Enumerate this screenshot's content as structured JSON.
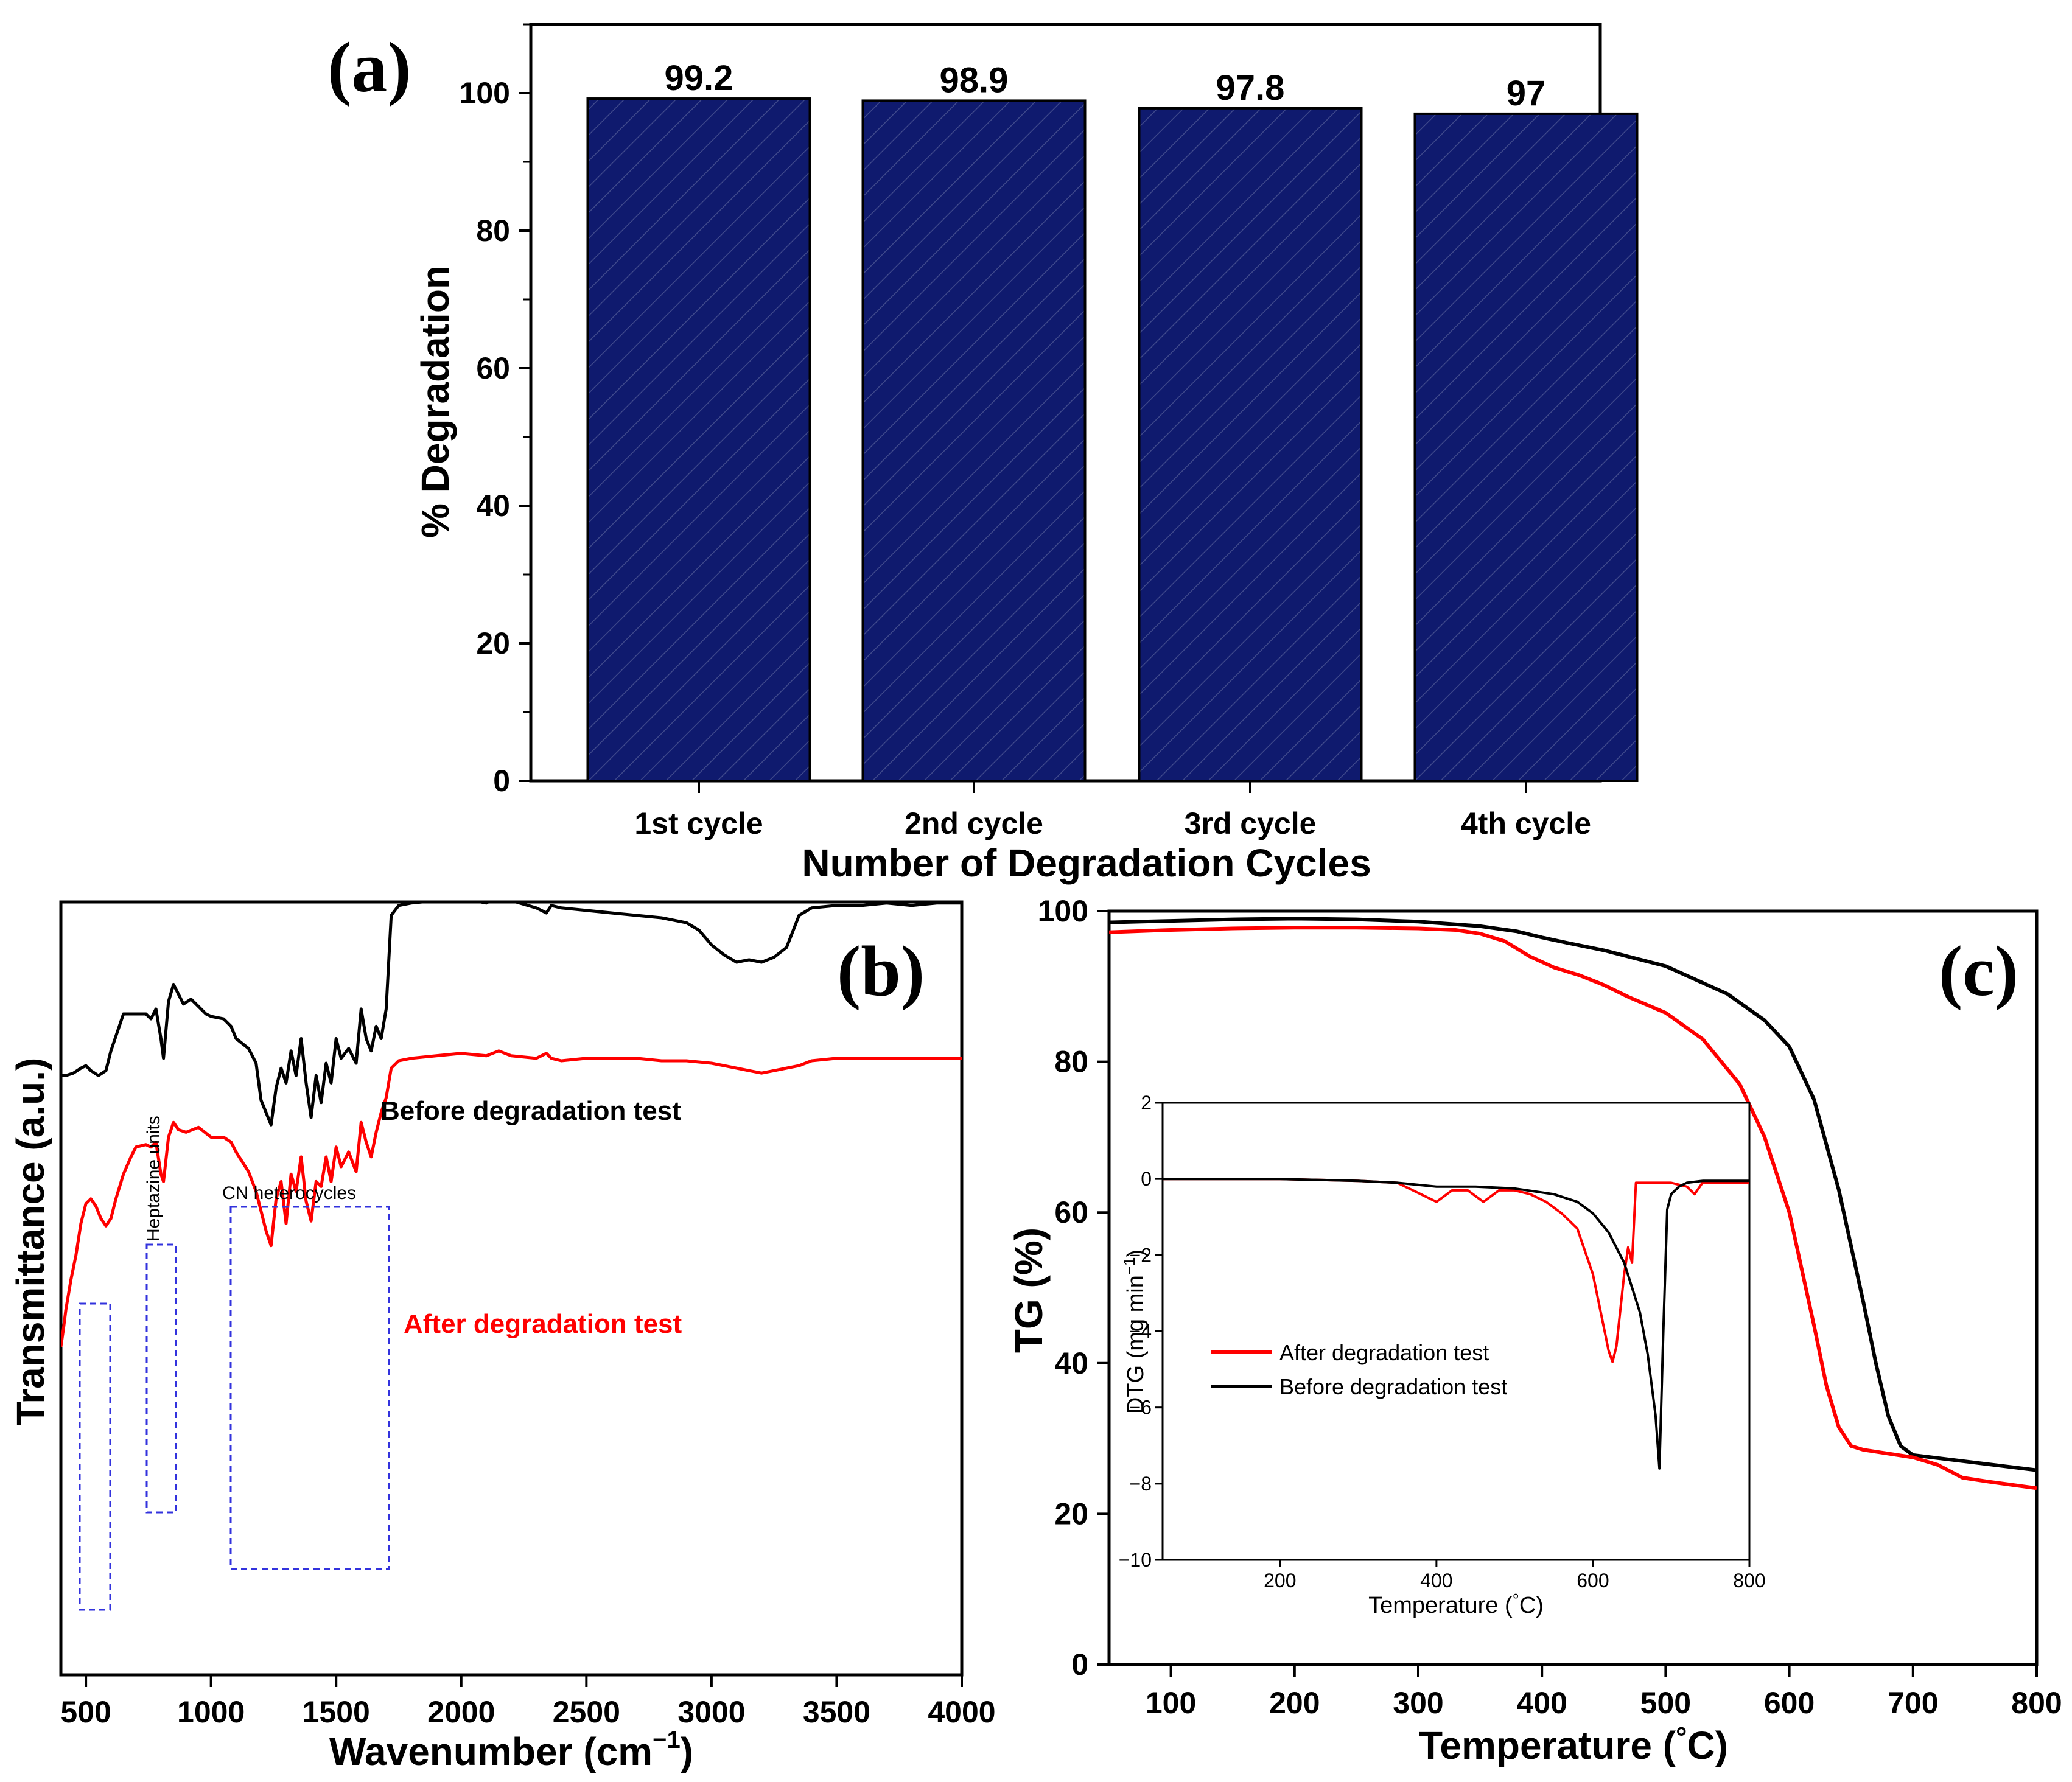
{
  "panels": {
    "a": {
      "label": "(a)"
    },
    "b": {
      "label": "(b)"
    },
    "c": {
      "label": "(c)"
    }
  },
  "chart_data": [
    {
      "id": "a",
      "type": "bar",
      "categories": [
        "1st cycle",
        "2nd cycle",
        "3rd cycle",
        "4th cycle"
      ],
      "values": [
        99.2,
        98.9,
        97.8,
        97
      ],
      "value_labels": [
        "99.2",
        "98.9",
        "97.8",
        "97"
      ],
      "xlabel": "Number of Degradation Cycles",
      "ylabel": "% Degradation",
      "ylim": [
        0,
        110
      ],
      "yticks": [
        0,
        20,
        40,
        60,
        80,
        100
      ],
      "ytick_labels": [
        "0",
        "20",
        "40",
        "60",
        "80",
        "100"
      ],
      "bar_color": "#0f1a6e",
      "hatch": "diagonal"
    },
    {
      "id": "b",
      "type": "line",
      "xlabel": "Wavenumber (cm",
      "xlabel_sup": "−1",
      "xlabel_end": ")",
      "ylabel": "Transmittance (a.u.)",
      "xlim": [
        400,
        4000
      ],
      "xticks": [
        500,
        1000,
        1500,
        2000,
        2500,
        3000,
        3500,
        4000
      ],
      "xtick_labels": [
        "500",
        "1000",
        "1500",
        "2000",
        "2500",
        "3000",
        "3500",
        "4000"
      ],
      "series": [
        {
          "name": "Before degradation test",
          "color": "#000000",
          "x": [
            400,
            420,
            450,
            480,
            500,
            520,
            550,
            580,
            600,
            650,
            700,
            740,
            760,
            780,
            800,
            810,
            830,
            850,
            870,
            890,
            920,
            950,
            980,
            1000,
            1050,
            1080,
            1100,
            1150,
            1180,
            1200,
            1220,
            1240,
            1260,
            1280,
            1300,
            1320,
            1340,
            1360,
            1380,
            1400,
            1420,
            1440,
            1460,
            1480,
            1500,
            1520,
            1550,
            1580,
            1600,
            1620,
            1640,
            1660,
            1680,
            1700,
            1720,
            1750,
            1800,
            1900,
            2000,
            2100,
            2150,
            2200,
            2300,
            2340,
            2360,
            2400,
            2500,
            2600,
            2700,
            2800,
            2900,
            2950,
            3000,
            3050,
            3100,
            3150,
            3200,
            3250,
            3300,
            3350,
            3400,
            3500,
            3600,
            3700,
            3800,
            3900,
            4000
          ],
          "y": [
            55,
            55,
            56,
            58,
            59,
            57,
            55,
            57,
            65,
            80,
            80,
            80,
            78,
            82,
            70,
            62,
            85,
            92,
            88,
            84,
            86,
            83,
            80,
            79,
            78,
            75,
            70,
            66,
            60,
            45,
            40,
            35,
            50,
            58,
            52,
            65,
            55,
            70,
            52,
            38,
            55,
            44,
            60,
            52,
            70,
            62,
            66,
            60,
            82,
            70,
            65,
            75,
            70,
            82,
            120,
            124,
            125,
            126,
            127,
            125,
            128,
            126,
            123,
            121,
            124,
            123,
            122,
            121,
            120,
            119,
            117,
            114,
            108,
            104,
            101,
            102,
            101,
            103,
            107,
            120,
            123,
            124,
            124,
            125,
            124,
            125,
            125
          ]
        },
        {
          "name": "After degradation test",
          "color": "#ff0000",
          "x": [
            400,
            410,
            420,
            440,
            460,
            480,
            500,
            520,
            540,
            560,
            580,
            600,
            620,
            650,
            680,
            700,
            740,
            760,
            780,
            800,
            810,
            830,
            850,
            870,
            900,
            950,
            1000,
            1050,
            1080,
            1100,
            1150,
            1180,
            1200,
            1220,
            1240,
            1260,
            1280,
            1300,
            1320,
            1340,
            1360,
            1380,
            1400,
            1420,
            1440,
            1460,
            1480,
            1500,
            1520,
            1550,
            1580,
            1600,
            1620,
            1640,
            1660,
            1680,
            1700,
            1720,
            1750,
            1800,
            1900,
            2000,
            2100,
            2150,
            2200,
            2300,
            2340,
            2360,
            2400,
            2500,
            2600,
            2700,
            2800,
            2900,
            3000,
            3050,
            3100,
            3150,
            3200,
            3250,
            3300,
            3350,
            3400,
            3500,
            3600,
            3700,
            3800,
            3900,
            4000
          ],
          "y": [
            -55,
            -48,
            -40,
            -28,
            -18,
            -5,
            3,
            5,
            2,
            -3,
            -6,
            -3,
            5,
            15,
            22,
            26,
            27,
            26,
            28,
            15,
            12,
            30,
            36,
            33,
            32,
            34,
            30,
            30,
            28,
            24,
            16,
            8,
            0,
            -8,
            -14,
            5,
            12,
            -5,
            15,
            8,
            22,
            4,
            -4,
            12,
            10,
            22,
            12,
            26,
            18,
            24,
            16,
            36,
            28,
            22,
            32,
            40,
            46,
            58,
            61,
            62,
            63,
            64,
            63,
            65,
            63,
            62,
            64,
            62,
            61,
            62,
            62,
            62,
            61,
            61,
            60,
            59,
            58,
            57,
            56,
            57,
            58,
            59,
            61,
            62,
            62,
            62,
            62,
            62,
            62
          ]
        }
      ],
      "annotations": [
        "Heptazine units",
        "CN heterocycles",
        "Before degradation test",
        "After degradation test"
      ]
    },
    {
      "id": "c",
      "type": "line",
      "xlabel": "Temperature (",
      "xlabel_deg": "°",
      "xlabel_end": "C)",
      "ylabel": "TG (%)",
      "xlim": [
        50,
        800
      ],
      "ylim": [
        0,
        100
      ],
      "xticks": [
        100,
        200,
        300,
        400,
        500,
        600,
        700,
        800
      ],
      "xtick_labels": [
        "100",
        "200",
        "300",
        "400",
        "500",
        "600",
        "700",
        "800"
      ],
      "yticks": [
        0,
        20,
        40,
        60,
        80,
        100
      ],
      "ytick_labels": [
        "0",
        "20",
        "40",
        "60",
        "80",
        "100"
      ],
      "series": [
        {
          "name": "Before degradation test",
          "color": "#000000",
          "x": [
            50,
            100,
            150,
            200,
            250,
            300,
            350,
            380,
            400,
            420,
            450,
            500,
            550,
            580,
            600,
            620,
            640,
            660,
            670,
            680,
            690,
            700,
            750,
            800
          ],
          "y": [
            98.5,
            98.7,
            98.9,
            99.0,
            98.9,
            98.6,
            98.0,
            97.3,
            96.5,
            95.8,
            94.8,
            92.7,
            89.0,
            85.5,
            82.0,
            75.0,
            63.0,
            48.0,
            40.0,
            33.0,
            29.0,
            27.8,
            26.8,
            25.8
          ]
        },
        {
          "name": "After degradation test",
          "color": "#ff0000",
          "x": [
            50,
            100,
            150,
            200,
            250,
            300,
            330,
            350,
            370,
            390,
            410,
            430,
            450,
            470,
            500,
            530,
            560,
            580,
            600,
            620,
            630,
            640,
            650,
            660,
            700,
            720,
            740,
            760,
            800
          ],
          "y": [
            97.2,
            97.5,
            97.7,
            97.8,
            97.8,
            97.7,
            97.5,
            97.0,
            96.0,
            94.0,
            92.5,
            91.5,
            90.2,
            88.6,
            86.5,
            83.0,
            77.0,
            70.0,
            60.0,
            45.0,
            37.0,
            31.5,
            29.0,
            28.5,
            27.5,
            26.5,
            24.8,
            24.3,
            23.4
          ]
        }
      ],
      "inset": {
        "type": "line",
        "xlabel": "Temperature (",
        "xlabel_deg": "°",
        "xlabel_end": "C)",
        "ylabel": "DTG (mg min",
        "ylabel_sup": "−1",
        "ylabel_end": ")",
        "xlim": [
          50,
          800
        ],
        "ylim": [
          -10,
          2
        ],
        "xticks": [
          200,
          400,
          600,
          800
        ],
        "xtick_labels": [
          "200",
          "400",
          "600",
          "800"
        ],
        "yticks": [
          -10,
          -8,
          -6,
          -4,
          -2,
          0,
          2
        ],
        "ytick_labels": [
          "−10",
          "−8",
          "−6",
          "−4",
          "−2",
          "0",
          "2"
        ],
        "series": [
          {
            "name": "After degradation test",
            "color": "#ff0000",
            "x": [
              50,
              100,
              200,
              300,
              350,
              380,
              400,
              420,
              440,
              460,
              480,
              500,
              520,
              540,
              560,
              580,
              600,
              610,
              620,
              625,
              630,
              640,
              645,
              650,
              655,
              660,
              700,
              720,
              730,
              740,
              800
            ],
            "y": [
              0,
              0,
              0,
              -0.05,
              -0.1,
              -0.4,
              -0.6,
              -0.3,
              -0.3,
              -0.6,
              -0.3,
              -0.3,
              -0.4,
              -0.6,
              -0.9,
              -1.3,
              -2.5,
              -3.5,
              -4.5,
              -4.8,
              -4.4,
              -2.5,
              -1.8,
              -2.2,
              -0.1,
              -0.1,
              -0.1,
              -0.2,
              -0.4,
              -0.1,
              -0.1
            ]
          },
          {
            "name": "Before degradation test",
            "color": "#000000",
            "x": [
              50,
              100,
              200,
              300,
              350,
              400,
              450,
              500,
              550,
              580,
              600,
              620,
              640,
              660,
              670,
              680,
              685,
              690,
              695,
              700,
              710,
              720,
              740,
              760,
              800
            ],
            "y": [
              0,
              0,
              0,
              -0.05,
              -0.1,
              -0.2,
              -0.2,
              -0.25,
              -0.4,
              -0.6,
              -0.9,
              -1.4,
              -2.2,
              -3.5,
              -4.6,
              -6.2,
              -7.6,
              -4.0,
              -0.8,
              -0.4,
              -0.2,
              -0.1,
              -0.05,
              -0.05,
              -0.05
            ]
          }
        ],
        "legend": [
          "After degradation test",
          "Before degradation test"
        ]
      }
    }
  ]
}
